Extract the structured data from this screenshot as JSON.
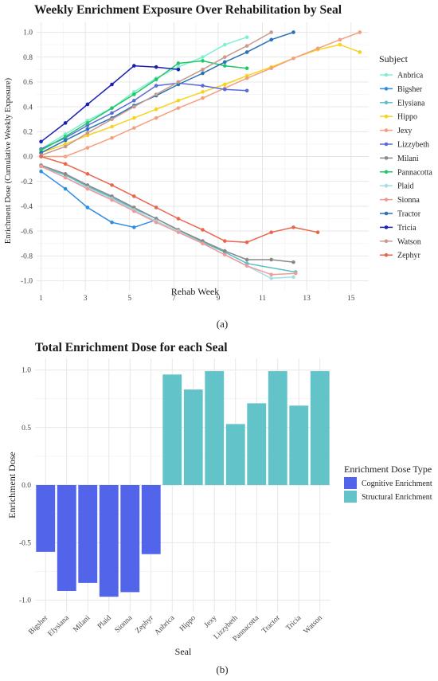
{
  "chart_data": [
    {
      "type": "line",
      "title": "Weekly Enrichment Exposure Over Rehabilitation by Seal",
      "xlabel": "Rehab Week",
      "ylabel": "Enrichment Dose (Cumulative Weekly Exposure)",
      "xlim": [
        0.8,
        15.8
      ],
      "ylim": [
        -1.08,
        1.08
      ],
      "x_ticks": [
        1,
        3,
        5,
        7,
        9,
        11,
        13,
        15
      ],
      "y_ticks": [
        -1.0,
        -0.8,
        -0.6,
        -0.4,
        -0.2,
        0.0,
        0.2,
        0.4,
        0.6,
        0.8,
        1.0
      ],
      "y_tick_labels": [
        "-1.0",
        "-0.8",
        "-0.6",
        "-0.4",
        "-0.2",
        "0.0",
        "0.2",
        "0.4",
        "0.6",
        "0.8",
        "1.0"
      ],
      "grid": true,
      "legend_title": "Subject",
      "legend_position": "right",
      "panel_label": "(a)",
      "series": [
        {
          "name": "Anbrica",
          "color": "#7ef0d2",
          "x": [
            1,
            2.1,
            3.1,
            4.2,
            5.2,
            6.2,
            7.2,
            8.3,
            9.3,
            10.3
          ],
          "y": [
            0.06,
            0.18,
            0.29,
            0.39,
            0.52,
            0.63,
            0.72,
            0.8,
            0.9,
            0.96
          ]
        },
        {
          "name": "Bigsher",
          "color": "#2f8de4",
          "x": [
            1,
            2.1,
            3.1,
            4.2,
            5.2,
            6.2
          ],
          "y": [
            -0.12,
            -0.26,
            -0.41,
            -0.53,
            -0.57,
            -0.51
          ]
        },
        {
          "name": "Elysiana",
          "color": "#5bc0c8",
          "x": [
            1,
            2.1,
            3.1,
            4.2,
            5.2,
            6.2,
            7.2,
            8.3,
            9.3,
            10.3,
            12.5
          ],
          "y": [
            -0.08,
            -0.15,
            -0.24,
            -0.33,
            -0.42,
            -0.5,
            -0.59,
            -0.69,
            -0.77,
            -0.86,
            -0.93
          ]
        },
        {
          "name": "Hippo",
          "color": "#f7d31c",
          "x": [
            1,
            2.1,
            3.1,
            4.2,
            5.2,
            6.2,
            7.2,
            8.3,
            9.3,
            10.3,
            11.4,
            12.4,
            13.5,
            14.5,
            15.4
          ],
          "y": [
            0.03,
            0.1,
            0.17,
            0.24,
            0.31,
            0.38,
            0.45,
            0.52,
            0.58,
            0.65,
            0.72,
            0.79,
            0.86,
            0.9,
            0.84
          ]
        },
        {
          "name": "Jexy",
          "color": "#f4a07e",
          "x": [
            1,
            2.1,
            3.1,
            4.2,
            5.2,
            6.2,
            7.2,
            8.3,
            9.3,
            10.3,
            11.4,
            12.4,
            13.5,
            14.5,
            15.4
          ],
          "y": [
            0.0,
            0.0,
            0.07,
            0.15,
            0.23,
            0.31,
            0.39,
            0.47,
            0.55,
            0.63,
            0.71,
            0.79,
            0.87,
            0.94,
            1.0
          ]
        },
        {
          "name": "Lizzybeth",
          "color": "#5a6bd8",
          "x": [
            1,
            2.1,
            3.1,
            4.2,
            5.2,
            6.2,
            7.2,
            8.3,
            9.3,
            10.3
          ],
          "y": [
            0.06,
            0.15,
            0.25,
            0.35,
            0.45,
            0.57,
            0.59,
            0.57,
            0.54,
            0.53
          ]
        },
        {
          "name": "Milani",
          "color": "#888888",
          "x": [
            1,
            2.1,
            3.1,
            4.2,
            5.2,
            6.2,
            7.2,
            8.3,
            9.3,
            10.3,
            11.4,
            12.4
          ],
          "y": [
            -0.07,
            -0.14,
            -0.23,
            -0.32,
            -0.41,
            -0.5,
            -0.59,
            -0.68,
            -0.76,
            -0.83,
            -0.83,
            -0.85
          ]
        },
        {
          "name": "Pannacotta",
          "color": "#22c768",
          "x": [
            1,
            2.1,
            3.1,
            4.2,
            5.2,
            6.2,
            7.2,
            8.3,
            9.3,
            10.3
          ],
          "y": [
            0.05,
            0.16,
            0.27,
            0.39,
            0.5,
            0.62,
            0.75,
            0.77,
            0.73,
            0.71
          ]
        },
        {
          "name": "Plaid",
          "color": "#a4dde8",
          "x": [
            1,
            2.1,
            3.1,
            4.2,
            5.2,
            6.2,
            7.2,
            8.3,
            9.3,
            10.3,
            11.4,
            12.4
          ],
          "y": [
            -0.08,
            -0.17,
            -0.25,
            -0.34,
            -0.43,
            -0.52,
            -0.6,
            -0.7,
            -0.79,
            -0.88,
            -0.98,
            -0.97
          ]
        },
        {
          "name": "Sionna",
          "color": "#f29a9a",
          "x": [
            1,
            2.1,
            3.1,
            4.2,
            5.2,
            6.2,
            7.2,
            8.3,
            9.3,
            10.3,
            11.4,
            12.5
          ],
          "y": [
            -0.08,
            -0.17,
            -0.26,
            -0.35,
            -0.44,
            -0.53,
            -0.61,
            -0.7,
            -0.79,
            -0.88,
            -0.95,
            -0.94
          ]
        },
        {
          "name": "Tractor",
          "color": "#2a72b5",
          "x": [
            1,
            2.1,
            3.1,
            4.2,
            5.2,
            6.2,
            7.2,
            8.3,
            9.3,
            10.3,
            11.4,
            12.4
          ],
          "y": [
            0.03,
            0.13,
            0.22,
            0.31,
            0.41,
            0.49,
            0.58,
            0.67,
            0.76,
            0.84,
            0.94,
            1.0
          ]
        },
        {
          "name": "Tricia",
          "color": "#1c1fb0",
          "x": [
            1,
            2.1,
            3.1,
            4.2,
            5.2,
            6.2,
            7.2
          ],
          "y": [
            0.12,
            0.27,
            0.42,
            0.58,
            0.73,
            0.72,
            0.7
          ]
        },
        {
          "name": "Watson",
          "color": "#c99a8e",
          "x": [
            1,
            2.1,
            3.1,
            4.2,
            5.2,
            6.2,
            7.2,
            8.3,
            9.3,
            10.3,
            11.4
          ],
          "y": [
            0.01,
            0.08,
            0.19,
            0.3,
            0.4,
            0.5,
            0.6,
            0.7,
            0.8,
            0.89,
            1.0
          ]
        },
        {
          "name": "Zephyr",
          "color": "#e8664c",
          "x": [
            1,
            2.1,
            3.1,
            4.2,
            5.2,
            6.2,
            7.2,
            8.3,
            9.3,
            10.3,
            11.4,
            12.4,
            13.5
          ],
          "y": [
            0.0,
            -0.06,
            -0.14,
            -0.23,
            -0.32,
            -0.41,
            -0.5,
            -0.59,
            -0.68,
            -0.69,
            -0.61,
            -0.57,
            -0.61
          ]
        }
      ]
    },
    {
      "type": "bar",
      "title": "Total Enrichment Dose for each Seal",
      "xlabel": "Seal",
      "ylabel": "Enrichment Dose",
      "ylim": [
        -1.1,
        1.1
      ],
      "y_ticks": [
        -1.0,
        -0.5,
        0.0,
        0.5,
        1.0
      ],
      "y_tick_labels": [
        "-1.0",
        "-0.5",
        "0.0",
        "0.5",
        "1.0"
      ],
      "grid": true,
      "legend_title": "Enrichment Dose Type",
      "legend_position": "right",
      "panel_label": "(b)",
      "categories": [
        "Bigsher",
        "Elysiana",
        "Milani",
        "Plaid",
        "Sionna",
        "Zephyr",
        "Anbrica",
        "Hippo",
        "Jexy",
        "Lizzybeth",
        "Pannacotta",
        "Tractor",
        "Tricia",
        "Watson"
      ],
      "values": [
        -0.58,
        -0.92,
        -0.85,
        -0.97,
        -0.93,
        -0.6,
        0.96,
        0.83,
        0.99,
        0.53,
        0.71,
        0.99,
        0.69,
        0.99
      ],
      "groups": [
        "Cognitive Enrichment",
        "Cognitive Enrichment",
        "Cognitive Enrichment",
        "Cognitive Enrichment",
        "Cognitive Enrichment",
        "Cognitive Enrichment",
        "Structural Enrichment",
        "Structural Enrichment",
        "Structural Enrichment",
        "Structural Enrichment",
        "Structural Enrichment",
        "Structural Enrichment",
        "Structural Enrichment",
        "Structural Enrichment"
      ],
      "legend": [
        {
          "name": "Cognitive Enrichment",
          "color": "#5164ea"
        },
        {
          "name": "Structural Enrichment",
          "color": "#62c3c9"
        }
      ]
    }
  ]
}
